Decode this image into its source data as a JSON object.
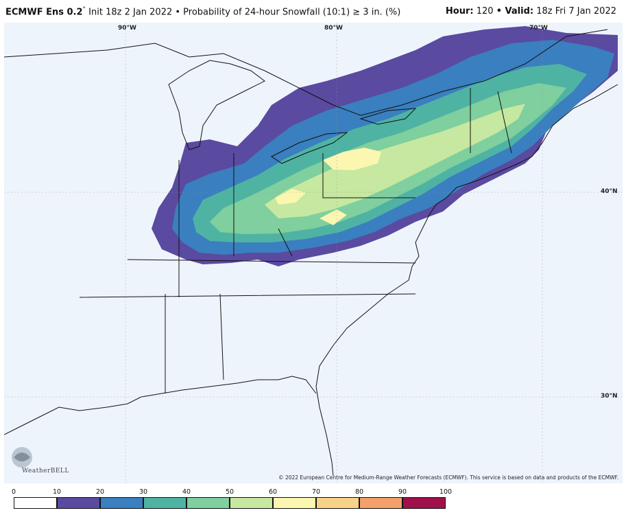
{
  "header": {
    "model": "ECMWF Ens 0.2",
    "degree": "°",
    "description": "Init 18z 2 Jan 2022 • Probability of 24-hour Snowfall (10:1) ≥ 3 in. (%)",
    "hour_label": "Hour:",
    "hour_value": "120",
    "valid_label": "• Valid:",
    "valid_value": "18z Fri 7 Jan 2022"
  },
  "map": {
    "lon_labels": [
      "90°W",
      "80°W",
      "70°W"
    ],
    "lat_labels": [
      "40°N",
      "30°N"
    ],
    "copyright": "© 2022 European Centre for Medium-Range Weather Forecasts (ECMWF). This service is based on data and products of the ECMWF.",
    "logo_text": "WeatherBELL",
    "background_color": "#eef4fc"
  },
  "legend": {
    "ticks": [
      "0",
      "10",
      "20",
      "30",
      "40",
      "50",
      "60",
      "70",
      "80",
      "90",
      "100"
    ],
    "colors": [
      "#ffffff",
      "#5a4aa0",
      "#3a7fbf",
      "#4fb3a3",
      "#7fcf9f",
      "#c6e8a0",
      "#fbf6b0",
      "#f7d38a",
      "#f3a06a",
      "#e3573d",
      "#a0104a"
    ]
  }
}
